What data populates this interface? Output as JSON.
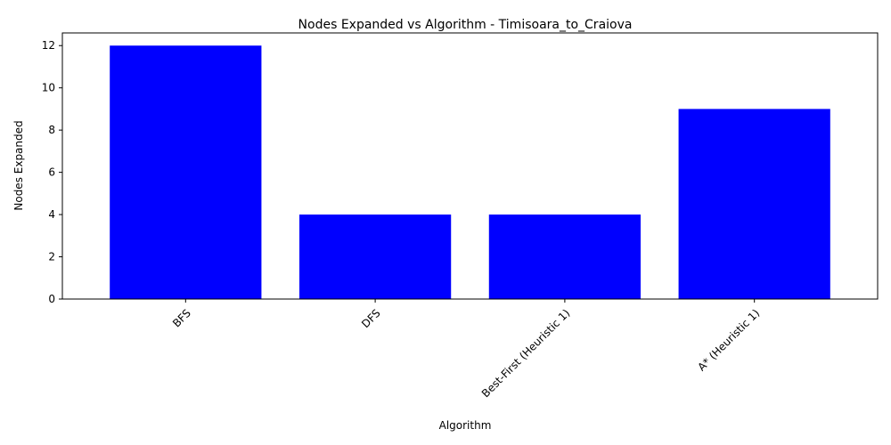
{
  "chart_data": {
    "type": "bar",
    "title": "Nodes Expanded vs Algorithm - Timisoara_to_Craiova",
    "xlabel": "Algorithm",
    "ylabel": "Nodes Expanded",
    "categories": [
      "BFS",
      "DFS",
      "Best-First (Heuristic 1)",
      "A* (Heuristic 1)"
    ],
    "values": [
      12,
      4,
      4,
      9
    ],
    "ylim": [
      0,
      12.6
    ],
    "yticks": [
      0,
      2,
      4,
      6,
      8,
      10,
      12
    ],
    "bar_color": "#0000ff",
    "x_tick_rotation_deg": 45,
    "grid": false,
    "legend": "none"
  }
}
